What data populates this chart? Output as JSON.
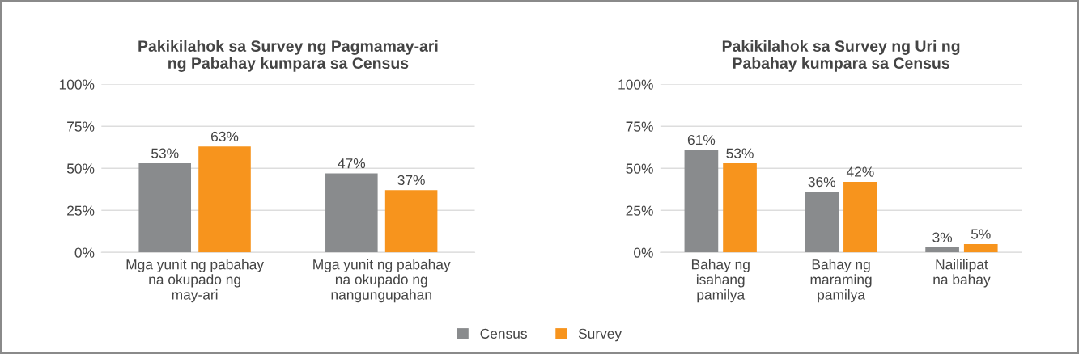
{
  "chart_data": [
    {
      "type": "bar",
      "title": "Pakikilahok sa Survey ng Pagmamay-ari\nng Pabahay kumpara sa Census",
      "categories": [
        "Mga yunit ng pabahay\nna okupado ng\nmay-ari",
        "Mga yunit ng pabahay\nna okupado ng\nnangungupahan"
      ],
      "series": [
        {
          "name": "Census",
          "color": "#898b8d",
          "values": [
            53,
            47
          ],
          "value_labels": [
            "53%",
            "47%"
          ]
        },
        {
          "name": "Survey",
          "color": "#f7941d",
          "values": [
            63,
            37
          ],
          "value_labels": [
            "63%",
            "37%"
          ]
        }
      ],
      "ylim": [
        0,
        100
      ],
      "yticks": [
        {
          "value": 0,
          "label": "0%"
        },
        {
          "value": 25,
          "label": "25%"
        },
        {
          "value": 50,
          "label": "50%"
        },
        {
          "value": 75,
          "label": "75%"
        },
        {
          "value": 100,
          "label": "100%"
        }
      ],
      "grid": "y",
      "legend": "bottom"
    },
    {
      "type": "bar",
      "title": "Pakikilahok sa Survey ng Uri ng\nPabahay kumpara sa Census",
      "categories": [
        "Bahay ng\nisahang\npamilya",
        "Bahay ng\nmaraming\npamilya",
        "Naililipat\nna bahay"
      ],
      "series": [
        {
          "name": "Census",
          "color": "#898b8d",
          "values": [
            61,
            36,
            3
          ],
          "value_labels": [
            "61%",
            "36%",
            "3%"
          ]
        },
        {
          "name": "Survey",
          "color": "#f7941d",
          "values": [
            53,
            42,
            5
          ],
          "value_labels": [
            "53%",
            "42%",
            "5%"
          ]
        }
      ],
      "ylim": [
        0,
        100
      ],
      "yticks": [
        {
          "value": 0,
          "label": "0%"
        },
        {
          "value": 25,
          "label": "25%"
        },
        {
          "value": 50,
          "label": "50%"
        },
        {
          "value": 75,
          "label": "75%"
        },
        {
          "value": 100,
          "label": "100%"
        }
      ],
      "grid": "y"
    }
  ]
}
